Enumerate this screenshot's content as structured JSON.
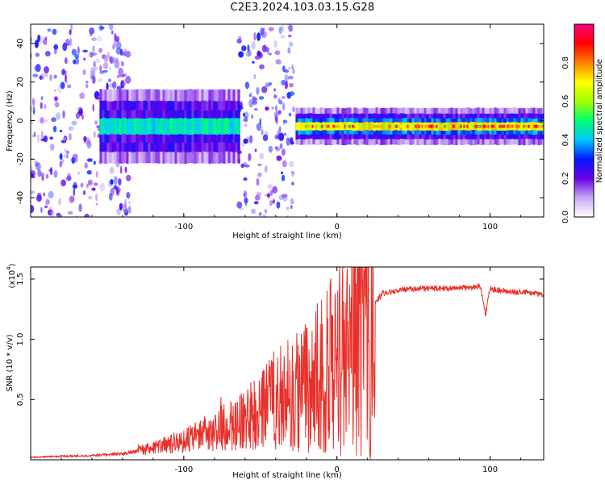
{
  "title": "C2E3.2024.103.03.15.G28",
  "colors": {
    "snr_line": "#e8302a",
    "colormap": [
      "#ffffff",
      "#c9a8f2",
      "#6a00e8",
      "#0018ff",
      "#00c8ff",
      "#00ff70",
      "#a0ff00",
      "#ffff00",
      "#ff8000",
      "#ff0000",
      "#ff0080"
    ]
  },
  "chart_data": [
    {
      "type": "heatmap",
      "xlabel": "Height of straight line (km)",
      "ylabel": "Frequency (Hz)",
      "xlim": [
        -200,
        135
      ],
      "ylim": [
        -50,
        50
      ],
      "xticks": [
        -100,
        0,
        100
      ],
      "yticks": [
        -40,
        -20,
        0,
        20,
        40
      ],
      "colorbar": {
        "label": "Normalized spectral amplitude",
        "range": [
          0,
          1
        ],
        "ticks": [
          0.0,
          0.2,
          0.4,
          0.6,
          0.8
        ]
      },
      "regions": [
        {
          "x": [
            -200,
            -135
          ],
          "freq_center": 0,
          "spread": 50,
          "level": 0.1
        },
        {
          "x": [
            -155,
            -64
          ],
          "freq_center": -3,
          "spread": 6,
          "level": 0.45
        },
        {
          "x": [
            -64,
            -28
          ],
          "freq_center": 0,
          "spread": 50,
          "level": 0.12
        },
        {
          "x": [
            -27,
            135
          ],
          "freq_center": -3,
          "spread": 3,
          "level": 0.7
        }
      ]
    },
    {
      "type": "line",
      "xlabel": "Height of straight line (km)",
      "ylabel": "SNR (10 * v/v)",
      "scale_label": "(x10",
      "scale_exp": "4",
      "ylim": [
        0,
        16000
      ],
      "xlim": [
        -200,
        135
      ],
      "xticks": [
        -100,
        0,
        100
      ],
      "yticks": [
        5000,
        10000,
        15000
      ],
      "ytick_labels": [
        "0.5",
        "1.0",
        "1.5"
      ],
      "series": [
        {
          "x": [
            -200,
            -180,
            -160,
            -140,
            -130,
            -120,
            -110,
            -100,
            -90,
            -80,
            -70,
            -60,
            -50,
            -45,
            -40,
            -30,
            -20,
            -10,
            -5,
            0,
            5,
            10,
            15,
            20,
            25,
            30,
            40,
            50,
            60,
            70,
            80,
            90,
            93,
            95,
            97,
            100,
            110,
            120,
            135
          ],
          "values": [
            200,
            300,
            350,
            500,
            700,
            1000,
            1300,
            1600,
            2000,
            2400,
            3000,
            3200,
            4000,
            4500,
            5000,
            5500,
            6000,
            7000,
            7500,
            8000,
            9000,
            10000,
            11000,
            12000,
            13000,
            13800,
            14100,
            14200,
            14200,
            14200,
            14300,
            14300,
            14500,
            13600,
            12000,
            14200,
            14000,
            13900,
            13700
          ]
        }
      ]
    }
  ]
}
